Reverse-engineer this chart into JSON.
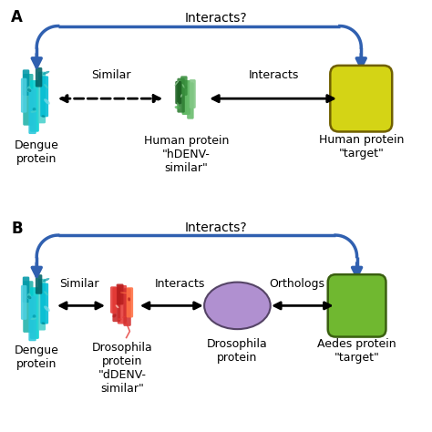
{
  "bg_color": "#ffffff",
  "fig_width": 4.74,
  "fig_height": 4.74,
  "arrow_color": "#3060b0",
  "text_color": "#000000",
  "panel_A": {
    "label": "A",
    "interacts_text": "Interacts?",
    "similar_label": "Similar",
    "interacts_label": "Interacts",
    "dengue_label": "Dengue\nprotein",
    "human_sim_label": "Human protein\n\"hDENV-\nsimilar\"",
    "human_target_label": "Human protein\n\"target\"",
    "cylinder_color": "#d4d415",
    "cylinder_edge": "#706000"
  },
  "panel_B": {
    "label": "B",
    "interacts_text": "Interacts?",
    "similar_label": "Similar",
    "interacts_label": "Interacts",
    "orthologs_label": "Orthologs",
    "dengue_label": "Dengue\nprotein",
    "drosophila_prot_label": "Drosophila\nprotein\n\"dDENV-\nsimilar\"",
    "drosophila_oval_label": "Drosophila\nprotein",
    "aedes_label": "Aedes protein\n\"target\"",
    "oval_color": "#b090d0",
    "oval_edge": "#554466",
    "aedes_cylinder_color": "#70b830",
    "aedes_cylinder_edge": "#3a6010"
  },
  "font_size_label": 9,
  "font_size_panel": 12,
  "font_size_arrow_text": 9
}
